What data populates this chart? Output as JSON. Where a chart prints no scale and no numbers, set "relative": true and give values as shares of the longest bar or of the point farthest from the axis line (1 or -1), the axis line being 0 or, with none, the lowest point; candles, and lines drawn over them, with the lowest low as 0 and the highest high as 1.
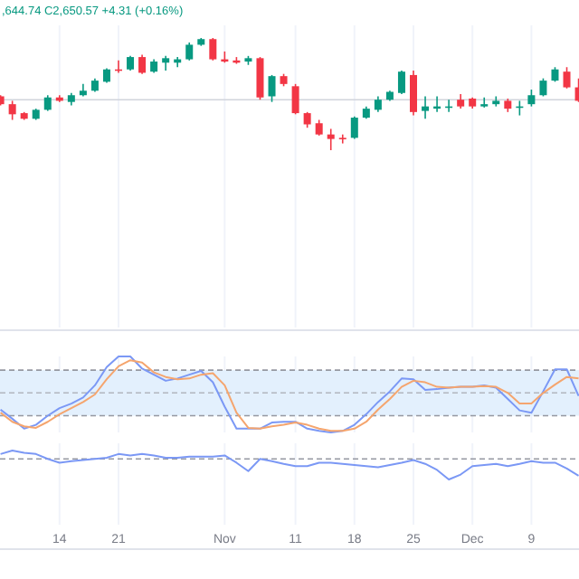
{
  "chart_data": [
    {
      "type": "candlestick",
      "relative": true,
      "tick_labels": false,
      "grid": "x",
      "annotations": [
        ",644.74 C2,650.57 +4.31 (+0.16%)"
      ],
      "categories": [
        null,
        null,
        null,
        null,
        null,
        null,
        null,
        null,
        null,
        null,
        null,
        null,
        null,
        null,
        null,
        null,
        null,
        null,
        null,
        null,
        null,
        null,
        null,
        null,
        null,
        null,
        null,
        null,
        null,
        null,
        null,
        null,
        null,
        null,
        null,
        null,
        null,
        null,
        null,
        null,
        null,
        null,
        null,
        null,
        null,
        null,
        null,
        null,
        null,
        null
      ],
      "ref_lines": [
        {
          "axis": "y",
          "value": 0.45,
          "color": "#d1d4dc",
          "line_style": "solid"
        }
      ],
      "ohlc": [
        [
          0.48,
          0.49,
          0.4,
          0.41
        ],
        [
          0.41,
          0.44,
          0.27,
          0.32
        ],
        [
          0.33,
          0.34,
          0.27,
          0.28
        ],
        [
          0.28,
          0.37,
          0.27,
          0.36
        ],
        [
          0.36,
          0.49,
          0.35,
          0.47
        ],
        [
          0.47,
          0.49,
          0.43,
          0.44
        ],
        [
          0.43,
          0.51,
          0.4,
          0.49
        ],
        [
          0.49,
          0.59,
          0.48,
          0.53
        ],
        [
          0.53,
          0.64,
          0.52,
          0.62
        ],
        [
          0.61,
          0.73,
          0.6,
          0.72
        ],
        [
          0.72,
          0.8,
          0.69,
          0.71
        ],
        [
          0.72,
          0.84,
          0.71,
          0.83
        ],
        [
          0.83,
          0.85,
          0.68,
          0.69
        ],
        [
          0.7,
          0.81,
          0.69,
          0.79
        ],
        [
          0.78,
          0.84,
          0.71,
          0.82
        ],
        [
          0.78,
          0.83,
          0.74,
          0.81
        ],
        [
          0.81,
          0.96,
          0.8,
          0.94
        ],
        [
          0.94,
          1.0,
          0.93,
          0.99
        ],
        [
          0.99,
          1.0,
          0.8,
          0.81
        ],
        [
          0.81,
          0.88,
          0.78,
          0.79
        ],
        [
          0.8,
          0.83,
          0.77,
          0.78
        ],
        [
          0.79,
          0.84,
          0.76,
          0.82
        ],
        [
          0.82,
          0.83,
          0.45,
          0.47
        ],
        [
          0.48,
          0.67,
          0.43,
          0.66
        ],
        [
          0.66,
          0.68,
          0.57,
          0.59
        ],
        [
          0.57,
          0.59,
          0.32,
          0.33
        ],
        [
          0.33,
          0.34,
          0.2,
          0.23
        ],
        [
          0.24,
          0.27,
          0.13,
          0.14
        ],
        [
          0.14,
          0.19,
          0.0,
          0.1
        ],
        [
          0.11,
          0.14,
          0.06,
          0.1
        ],
        [
          0.11,
          0.3,
          0.1,
          0.29
        ],
        [
          0.29,
          0.39,
          0.28,
          0.37
        ],
        [
          0.36,
          0.48,
          0.34,
          0.45
        ],
        [
          0.45,
          0.53,
          0.44,
          0.52
        ],
        [
          0.51,
          0.71,
          0.5,
          0.7
        ],
        [
          0.67,
          0.71,
          0.31,
          0.34
        ],
        [
          0.35,
          0.48,
          0.28,
          0.39
        ],
        [
          0.37,
          0.48,
          0.34,
          0.39
        ],
        [
          0.38,
          0.45,
          0.34,
          0.39
        ],
        [
          0.45,
          0.5,
          0.37,
          0.39
        ],
        [
          0.46,
          0.47,
          0.37,
          0.39
        ],
        [
          0.39,
          0.47,
          0.38,
          0.41
        ],
        [
          0.41,
          0.48,
          0.39,
          0.44
        ],
        [
          0.44,
          0.46,
          0.34,
          0.37
        ],
        [
          0.38,
          0.44,
          0.31,
          0.39
        ],
        [
          0.41,
          0.54,
          0.39,
          0.49
        ],
        [
          0.49,
          0.64,
          0.48,
          0.62
        ],
        [
          0.62,
          0.74,
          0.61,
          0.72
        ],
        [
          0.7,
          0.74,
          0.55,
          0.56
        ],
        [
          0.56,
          0.64,
          0.43,
          0.44
        ]
      ]
    },
    {
      "type": "line",
      "relative": true,
      "tick_labels": false,
      "grid": "x",
      "categories": [
        null,
        null,
        null,
        null,
        null,
        null,
        null,
        null,
        null,
        null,
        null,
        null,
        null,
        null,
        null,
        null,
        null,
        null,
        null,
        null,
        null,
        null,
        null,
        null,
        null,
        null,
        null,
        null,
        null,
        null,
        null,
        null,
        null,
        null,
        null,
        null,
        null,
        null,
        null,
        null,
        null,
        null,
        null,
        null,
        null,
        null,
        null,
        null,
        null,
        null
      ],
      "bands": [
        {
          "axis": "y",
          "from": 0.22,
          "to": 0.82,
          "color": "#e3f0fd"
        }
      ],
      "ref_lines": [
        {
          "axis": "y",
          "value": 0.82,
          "color": "#9598a1",
          "line_style": "dashed"
        },
        {
          "axis": "y",
          "value": 0.52,
          "color": "#b2b5be",
          "line_style": "dashed"
        },
        {
          "axis": "y",
          "value": 0.22,
          "color": "#9598a1",
          "line_style": "dashed"
        }
      ],
      "series": [
        {
          "color": "#7b98f5",
          "values": [
            0.3,
            0.18,
            0.05,
            0.1,
            0.22,
            0.32,
            0.38,
            0.46,
            0.62,
            0.86,
            1.0,
            1.0,
            0.84,
            0.76,
            0.68,
            0.71,
            0.76,
            0.81,
            0.66,
            0.34,
            0.05,
            0.05,
            0.05,
            0.13,
            0.14,
            0.14,
            0.05,
            0.02,
            0.0,
            0.02,
            0.1,
            0.24,
            0.4,
            0.54,
            0.71,
            0.7,
            0.56,
            0.57,
            0.59,
            0.6,
            0.6,
            0.62,
            0.59,
            0.44,
            0.29,
            0.26,
            0.54,
            0.83,
            0.83,
            0.48
          ]
        },
        {
          "color": "#f5a56e",
          "values": [
            0.26,
            0.14,
            0.08,
            0.06,
            0.14,
            0.24,
            0.32,
            0.4,
            0.5,
            0.7,
            0.87,
            0.95,
            0.92,
            0.79,
            0.73,
            0.7,
            0.71,
            0.76,
            0.78,
            0.62,
            0.26,
            0.06,
            0.05,
            0.08,
            0.1,
            0.13,
            0.1,
            0.05,
            0.02,
            0.02,
            0.05,
            0.14,
            0.3,
            0.44,
            0.6,
            0.68,
            0.66,
            0.6,
            0.59,
            0.6,
            0.6,
            0.61,
            0.6,
            0.52,
            0.38,
            0.38,
            0.52,
            0.63,
            0.73,
            0.71
          ]
        }
      ]
    },
    {
      "type": "line",
      "relative": true,
      "tick_labels": "x",
      "grid": "x",
      "categories": [
        null,
        null,
        null,
        null,
        null,
        "14",
        null,
        null,
        null,
        null,
        "21",
        null,
        null,
        null,
        null,
        null,
        null,
        null,
        null,
        "Nov",
        null,
        null,
        null,
        null,
        null,
        "11",
        null,
        null,
        null,
        null,
        "18",
        null,
        null,
        null,
        null,
        "25",
        null,
        null,
        null,
        null,
        "Dec",
        null,
        null,
        null,
        null,
        "9",
        null,
        null,
        null,
        null
      ],
      "ref_lines": [
        {
          "axis": "y",
          "value": 0.71,
          "color": "#9598a1",
          "line_style": "dashed"
        }
      ],
      "series": [
        {
          "color": "#7b98f5",
          "values": [
            0.88,
            1.0,
            0.92,
            0.88,
            0.71,
            0.58,
            0.63,
            0.67,
            0.71,
            0.75,
            0.88,
            0.83,
            0.88,
            0.83,
            0.75,
            0.75,
            0.79,
            0.79,
            0.79,
            0.83,
            0.58,
            0.29,
            0.71,
            0.63,
            0.54,
            0.46,
            0.46,
            0.58,
            0.58,
            0.54,
            0.5,
            0.46,
            0.42,
            0.5,
            0.58,
            0.67,
            0.54,
            0.33,
            0.0,
            0.17,
            0.46,
            0.5,
            0.54,
            0.46,
            0.54,
            0.63,
            0.58,
            0.58,
            0.38,
            0.13
          ]
        }
      ]
    }
  ]
}
